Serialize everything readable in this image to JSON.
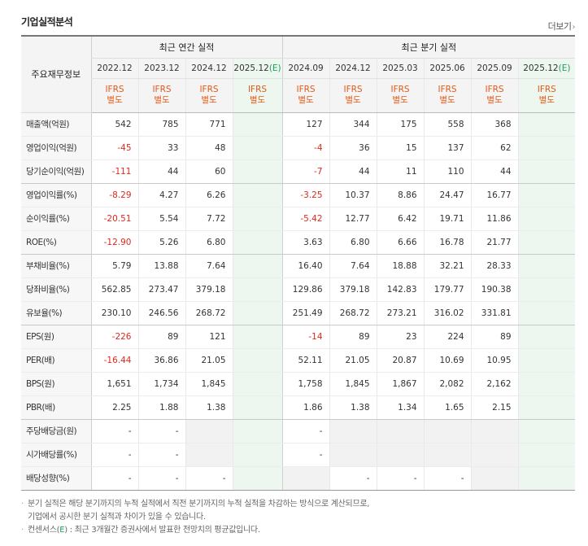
{
  "header": {
    "title": "기업실적분석",
    "more_label": "더보기"
  },
  "table": {
    "label_header": "주요재무정보",
    "groups": {
      "annual": "최근 연간 실적",
      "quarterly": "최근 분기 실적"
    },
    "annual_periods": [
      "2022.12",
      "2023.12",
      "2024.12",
      "2025.12"
    ],
    "quarter_periods": [
      "2024.09",
      "2024.12",
      "2025.03",
      "2025.06",
      "2025.09",
      "2025.12"
    ],
    "estimate_suffix": "(E)",
    "basis": {
      "line1": "IFRS",
      "line2": "별도"
    },
    "rows": [
      {
        "label": "매출액(억원)",
        "annual": [
          "542",
          "785",
          "771",
          ""
        ],
        "quarter": [
          "127",
          "344",
          "175",
          "558",
          "368",
          ""
        ]
      },
      {
        "label": "영업이익(억원)",
        "annual": [
          "-45",
          "33",
          "48",
          ""
        ],
        "quarter": [
          "-4",
          "36",
          "15",
          "137",
          "62",
          ""
        ]
      },
      {
        "label": "당기순이익(억원)",
        "annual": [
          "-111",
          "44",
          "60",
          ""
        ],
        "quarter": [
          "-7",
          "44",
          "11",
          "110",
          "44",
          ""
        ]
      },
      {
        "label": "영업이익률(%)",
        "annual": [
          "-8.29",
          "4.27",
          "6.26",
          ""
        ],
        "quarter": [
          "-3.25",
          "10.37",
          "8.86",
          "24.47",
          "16.77",
          ""
        ]
      },
      {
        "label": "순이익률(%)",
        "annual": [
          "-20.51",
          "5.54",
          "7.72",
          ""
        ],
        "quarter": [
          "-5.42",
          "12.77",
          "6.42",
          "19.71",
          "11.86",
          ""
        ]
      },
      {
        "label": "ROE(%)",
        "annual": [
          "-12.90",
          "5.26",
          "6.80",
          ""
        ],
        "quarter": [
          "3.63",
          "6.80",
          "6.66",
          "16.78",
          "21.77",
          ""
        ]
      },
      {
        "label": "부채비율(%)",
        "annual": [
          "5.79",
          "13.88",
          "7.64",
          ""
        ],
        "quarter": [
          "16.40",
          "7.64",
          "18.88",
          "32.21",
          "28.33",
          ""
        ]
      },
      {
        "label": "당좌비율(%)",
        "annual": [
          "562.85",
          "273.47",
          "379.18",
          ""
        ],
        "quarter": [
          "129.86",
          "379.18",
          "142.83",
          "179.77",
          "190.38",
          ""
        ]
      },
      {
        "label": "유보율(%)",
        "annual": [
          "230.10",
          "246.56",
          "268.72",
          ""
        ],
        "quarter": [
          "251.49",
          "268.72",
          "273.21",
          "316.02",
          "331.81",
          ""
        ]
      },
      {
        "label": "EPS(원)",
        "annual": [
          "-226",
          "89",
          "121",
          ""
        ],
        "quarter": [
          "-14",
          "89",
          "23",
          "224",
          "89",
          ""
        ]
      },
      {
        "label": "PER(배)",
        "annual": [
          "-16.44",
          "36.86",
          "21.05",
          ""
        ],
        "quarter": [
          "52.11",
          "21.05",
          "20.87",
          "10.69",
          "10.95",
          ""
        ]
      },
      {
        "label": "BPS(원)",
        "annual": [
          "1,651",
          "1,734",
          "1,845",
          ""
        ],
        "quarter": [
          "1,758",
          "1,845",
          "1,867",
          "2,082",
          "2,162",
          ""
        ]
      },
      {
        "label": "PBR(배)",
        "annual": [
          "2.25",
          "1.88",
          "1.38",
          ""
        ],
        "quarter": [
          "1.86",
          "1.38",
          "1.34",
          "1.65",
          "2.15",
          ""
        ]
      },
      {
        "label": "주당배당금(원)",
        "annual": [
          "-",
          "-",
          "",
          ""
        ],
        "quarter": [
          "-",
          "",
          "",
          "",
          "",
          ""
        ]
      },
      {
        "label": "시가배당률(%)",
        "annual": [
          "-",
          "-",
          "",
          ""
        ],
        "quarter": [
          "-",
          "",
          "",
          "",
          "",
          ""
        ]
      },
      {
        "label": "배당성향(%)",
        "annual": [
          "-",
          "-",
          "-",
          ""
        ],
        "quarter": [
          "",
          "-",
          "-",
          "-",
          "",
          ""
        ]
      }
    ]
  },
  "notes": {
    "line1": "분기 실적은 해당 분기까지의 누적 실적에서 직전 분기까지의 누적 실적을 차감하는 방식으로 계산되므로,",
    "line2": "기업에서 공시한 분기 실적과 차이가 있을 수 있습니다.",
    "line3_prefix": "컨센서스(",
    "line3_mark": "E",
    "line3_suffix": ") : 최근 3개월간 증권사에서 발표한 전망치의 평균값입니다."
  }
}
